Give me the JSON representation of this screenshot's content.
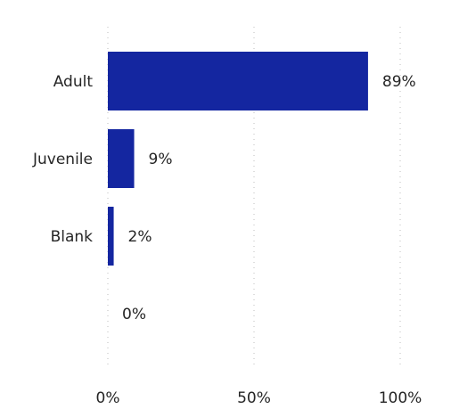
{
  "chart_data": {
    "type": "bar",
    "orientation": "horizontal",
    "categories": [
      "Adult",
      "Juvenile",
      "Blank",
      ""
    ],
    "values": [
      89,
      9,
      2,
      0
    ],
    "data_labels": [
      "89%",
      "9%",
      "2%",
      "0%"
    ],
    "xlim": [
      0,
      100
    ],
    "xticks": [
      0,
      50,
      100
    ],
    "xtick_labels": [
      "0%",
      "50%",
      "100%"
    ],
    "grid": "vertical-dotted",
    "bar_color": "#1426a0",
    "title": "",
    "xlabel": "",
    "ylabel": ""
  }
}
